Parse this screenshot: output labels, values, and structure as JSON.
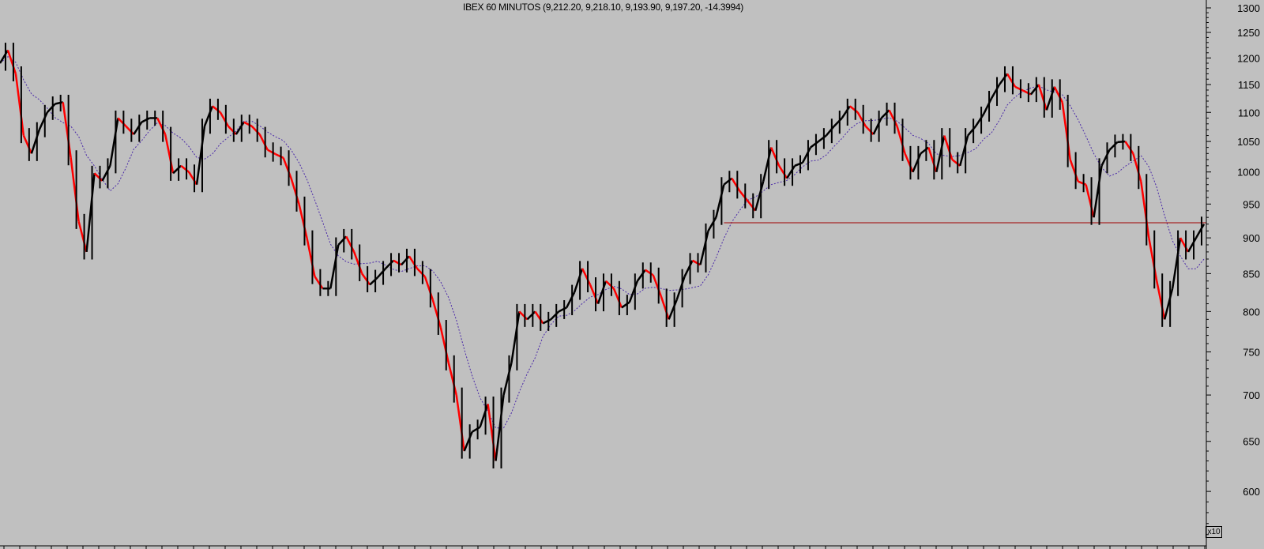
{
  "chart_data": {
    "type": "line",
    "title": "IBEX 60 MINUTOS (9,212.20, 9,218.10, 9,193.90, 9,197.20, -14.3994)",
    "xlabel": "",
    "ylabel": "",
    "y_scale": "log",
    "y_multiplier_label": "x10",
    "ylim": [
      550,
      1300
    ],
    "yticks": [
      600,
      650,
      700,
      750,
      800,
      850,
      900,
      950,
      1000,
      1050,
      1100,
      1150,
      1200,
      1250,
      1300
    ],
    "grid": false,
    "colors": {
      "background": "#c0c0c0",
      "up": "#000000",
      "down": "#ff0000",
      "moving_average": "#4b2aa8",
      "level_line": "#a00000"
    },
    "horizontal_level": {
      "value": 922,
      "from_index": 92
    },
    "series": [
      {
        "type": "price",
        "values": [
          1190,
          1215,
          1170,
          1060,
          1030,
          1070,
          1100,
          1115,
          1118,
          1023,
          924,
          880,
          998,
          986,
          1010,
          1090,
          1076,
          1062,
          1083,
          1090,
          1090,
          1062,
          998,
          1010,
          1000,
          980,
          1076,
          1111,
          1100,
          1076,
          1062,
          1083,
          1076,
          1062,
          1036,
          1029,
          1023,
          990,
          950,
          900,
          846,
          830,
          830,
          890,
          902,
          880,
          850,
          835,
          845,
          857,
          868,
          862,
          874,
          857,
          846,
          815,
          780,
          737,
          700,
          640,
          660,
          665,
          690,
          630,
          700,
          737,
          800,
          790,
          800,
          785,
          790,
          800,
          805,
          825,
          857,
          835,
          810,
          840,
          830,
          805,
          812,
          840,
          855,
          848,
          820,
          790,
          815,
          846,
          868,
          862,
          910,
          930,
          980,
          990,
          970,
          955,
          940,
          985,
          1040,
          1010,
          990,
          1010,
          1015,
          1040,
          1050,
          1060,
          1076,
          1090,
          1111,
          1100,
          1076,
          1062,
          1090,
          1104,
          1076,
          1030,
          1000,
          1030,
          1040,
          1000,
          1060,
          1020,
          1010,
          1060,
          1076,
          1097,
          1125,
          1150,
          1170,
          1146,
          1139,
          1132,
          1150,
          1104,
          1146,
          1118,
          1020,
          985,
          980,
          930,
          1010,
          1036,
          1049,
          1050,
          1030,
          985,
          900,
          840,
          790,
          830,
          900,
          880,
          900,
          920
        ]
      },
      {
        "type": "moving_average",
        "period": 6
      }
    ]
  }
}
